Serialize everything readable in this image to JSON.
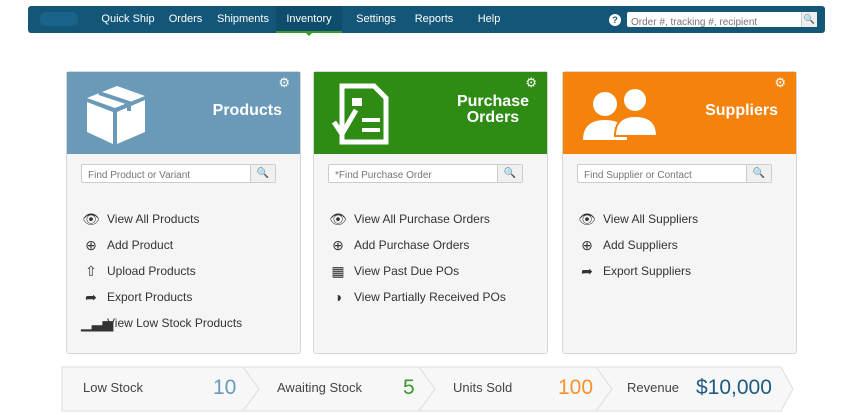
{
  "nav": {
    "items": [
      "Quick Ship",
      "Orders",
      "Shipments",
      "Inventory",
      "Settings",
      "Reports",
      "Help"
    ],
    "active": "Inventory",
    "search_placeholder": "Order #, tracking #, recipient",
    "help_icon": "question-circle-icon",
    "search_icon": "search-icon"
  },
  "cards": [
    {
      "title": "Products",
      "color": "#6a9ab8",
      "icon": "box-icon",
      "search_placeholder": "Find Product or Variant",
      "links": [
        {
          "label": "View All Products",
          "icon": "eye-icon"
        },
        {
          "label": "Add Product",
          "icon": "plus-circle-icon"
        },
        {
          "label": "Upload Products",
          "icon": "upload-icon"
        },
        {
          "label": "Export Products",
          "icon": "share-icon"
        },
        {
          "label": "View Low Stock Products",
          "icon": "bar-chart-icon"
        }
      ]
    },
    {
      "title": "Purchase Orders",
      "title_lines": [
        "Purchase",
        "Orders"
      ],
      "color": "#2e8b14",
      "icon": "checklist-document-icon",
      "search_placeholder": "*Find Purchase Order",
      "links": [
        {
          "label": "View All Purchase Orders",
          "icon": "eye-icon"
        },
        {
          "label": "Add Purchase Orders",
          "icon": "plus-circle-icon"
        },
        {
          "label": "View Past Due POs",
          "icon": "calendar-icon"
        },
        {
          "label": "View Partially Received POs",
          "icon": "half-circle-icon"
        }
      ]
    },
    {
      "title": "Suppliers",
      "color": "#f5820a",
      "icon": "users-icon",
      "search_placeholder": "Find Supplier or Contact",
      "links": [
        {
          "label": "View All Suppliers",
          "icon": "eye-icon"
        },
        {
          "label": "Add Suppliers",
          "icon": "plus-circle-icon"
        },
        {
          "label": "Export Suppliers",
          "icon": "share-icon"
        }
      ]
    }
  ],
  "stats": [
    {
      "label": "Low Stock",
      "value": "10",
      "color": "#6a9ab8"
    },
    {
      "label": "Awaiting Stock",
      "value": "5",
      "color": "#3a9a2c"
    },
    {
      "label": "Units Sold",
      "value": "100",
      "color": "#f5922a"
    },
    {
      "label": "Revenue",
      "value": "$10,000",
      "color": "#1e5a80"
    }
  ]
}
